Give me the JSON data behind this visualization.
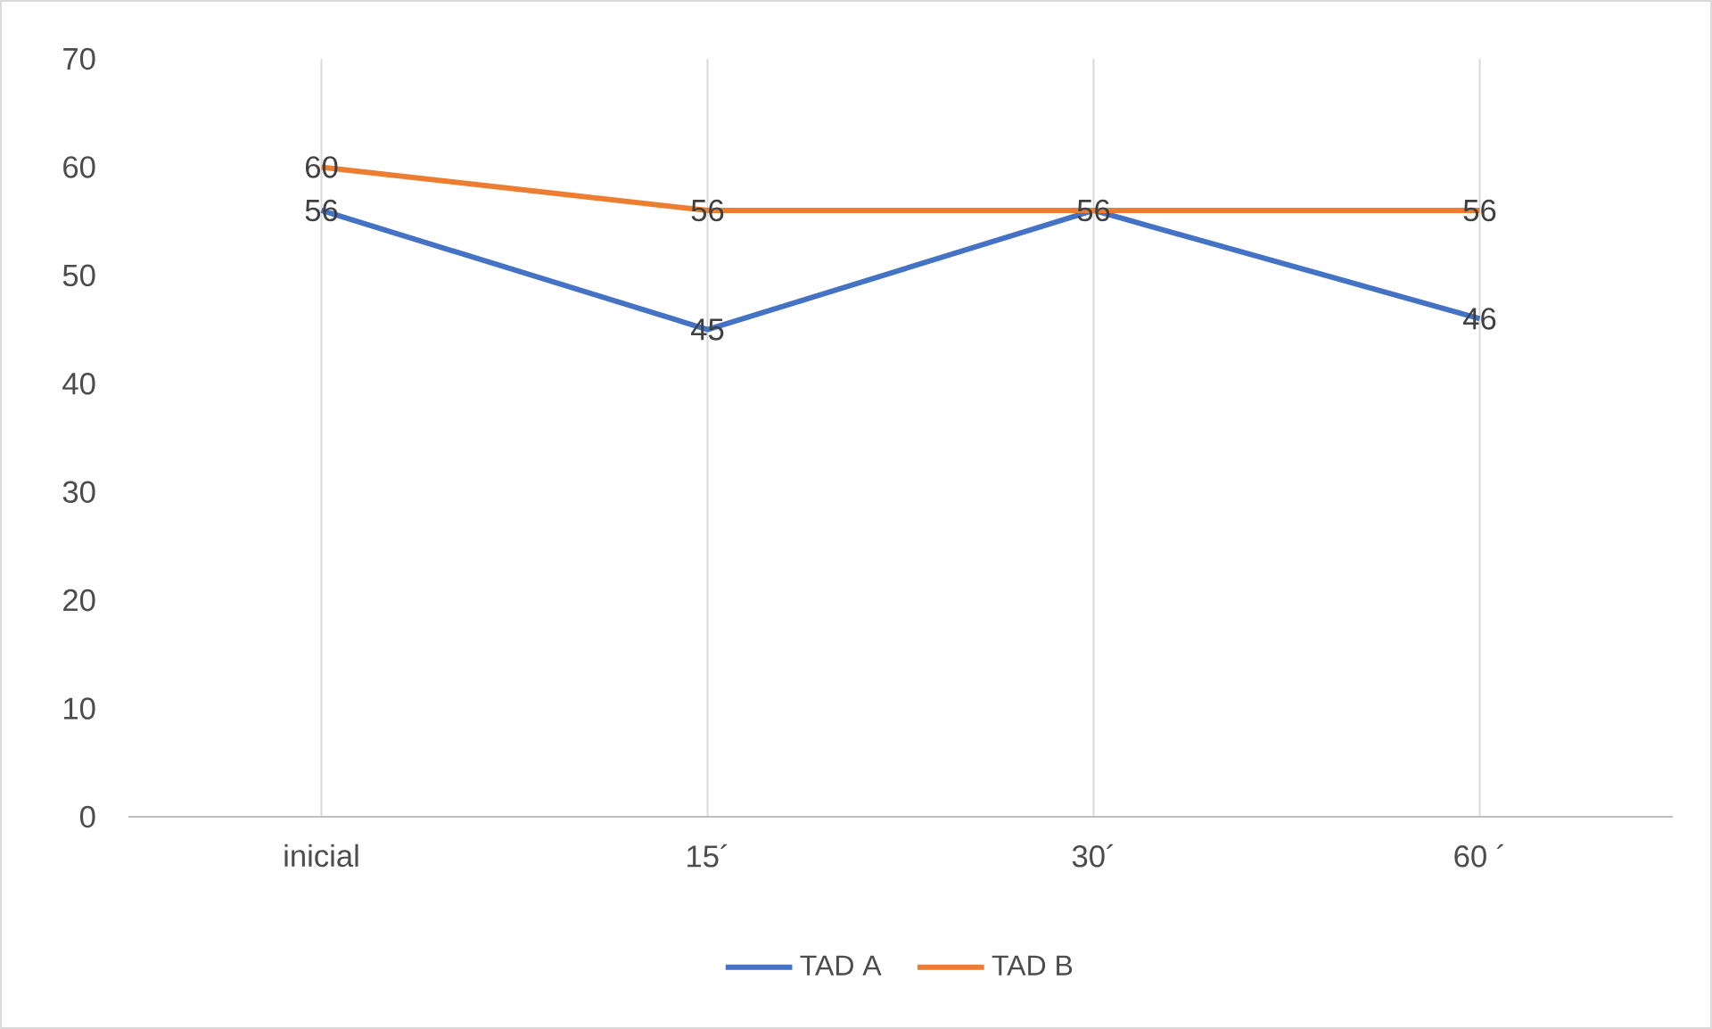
{
  "chart_data": {
    "type": "line",
    "categories": [
      "inicial",
      "15´",
      "30´",
      "60 ´"
    ],
    "series": [
      {
        "name": "TAD A",
        "color": "#4472c4",
        "values": [
          56,
          45,
          56,
          46
        ],
        "value_labels": [
          "56",
          "45",
          "56",
          "46"
        ]
      },
      {
        "name": "TAD B",
        "color": "#ed7d31",
        "values": [
          60,
          56,
          56,
          56
        ],
        "value_labels": [
          "60",
          "56",
          null,
          "56"
        ]
      }
    ],
    "ylim": [
      0,
      70
    ],
    "yticks": [
      0,
      10,
      20,
      30,
      40,
      50,
      60,
      70
    ],
    "grid": "x",
    "legend": "bottom",
    "marker": "none",
    "line_style": "solid"
  }
}
